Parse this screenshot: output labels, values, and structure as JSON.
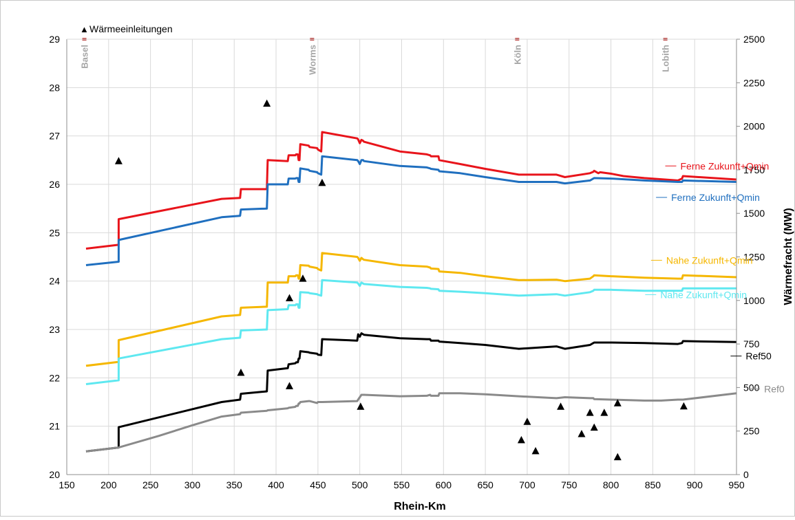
{
  "chart_data": {
    "type": "line",
    "xlabel": "Rhein-Km",
    "ylabel_right": "Wärmefracht  (MW)",
    "xlim": [
      150,
      950
    ],
    "ylim_left": [
      20,
      29
    ],
    "ylim_right": [
      0,
      2500
    ],
    "x_ticks": [
      "150",
      "200",
      "250",
      "300",
      "350",
      "400",
      "450",
      "500",
      "550",
      "600",
      "650",
      "700",
      "750",
      "800",
      "850",
      "900",
      "950"
    ],
    "y_ticks_left": [
      "20",
      "21",
      "22",
      "23",
      "24",
      "25",
      "26",
      "27",
      "28",
      "29"
    ],
    "y_ticks_right": [
      "0",
      "250",
      "500",
      "750",
      "1000",
      "1250",
      "1500",
      "1750",
      "2000",
      "2250",
      "2500"
    ],
    "grid": true,
    "legend": {
      "marker": "▲",
      "label": "Wärmeeinleitungen",
      "position": "top-left"
    },
    "locations": [
      {
        "name": "Basel",
        "km": 171
      },
      {
        "name": "Worms",
        "km": 443
      },
      {
        "name": "Köln",
        "km": 688
      },
      {
        "name": "Lobith",
        "km": 865
      }
    ],
    "series": [
      {
        "name": "Ferne Zukunft+Qmin",
        "color": "#e8141b",
        "x": [
          173,
          212,
          212,
          335,
          357,
          358,
          389,
          390,
          414,
          415,
          423,
          424,
          426,
          427,
          428,
          429,
          439,
          440,
          449,
          450,
          454,
          455,
          497,
          498,
          500,
          502,
          504,
          505,
          548,
          580,
          584,
          585,
          594,
          595,
          620,
          650,
          690,
          735,
          745,
          775,
          779,
          780,
          785,
          787,
          800,
          815,
          840,
          880,
          885,
          886,
          950
        ],
        "y": [
          24.67,
          24.75,
          25.28,
          25.7,
          25.72,
          25.9,
          25.9,
          26.5,
          26.48,
          26.6,
          26.6,
          26.62,
          26.62,
          26.5,
          26.5,
          26.83,
          26.8,
          26.77,
          26.75,
          26.72,
          26.68,
          27.08,
          26.95,
          26.93,
          26.85,
          26.92,
          26.9,
          26.88,
          26.68,
          26.62,
          26.6,
          26.58,
          26.58,
          26.5,
          26.42,
          26.32,
          26.2,
          26.2,
          26.15,
          26.23,
          26.26,
          26.28,
          26.23,
          26.25,
          26.22,
          26.17,
          26.13,
          26.08,
          26.12,
          26.17,
          26.1
        ]
      },
      {
        "name": "Ferne Zukunft+Qmin",
        "color": "#1f6fbf",
        "x": [
          173,
          212,
          212,
          335,
          357,
          358,
          389,
          390,
          414,
          415,
          423,
          424,
          426,
          427,
          428,
          429,
          439,
          440,
          449,
          450,
          454,
          455,
          497,
          498,
          500,
          502,
          504,
          505,
          548,
          580,
          584,
          585,
          594,
          595,
          620,
          650,
          690,
          735,
          745,
          775,
          779,
          780,
          800,
          840,
          880,
          885,
          886,
          950
        ],
        "y": [
          24.33,
          24.4,
          24.85,
          25.32,
          25.35,
          25.48,
          25.5,
          26.0,
          26.0,
          26.12,
          26.12,
          26.13,
          26.13,
          26.05,
          26.05,
          26.33,
          26.3,
          26.28,
          26.25,
          26.23,
          26.2,
          26.58,
          26.5,
          26.48,
          26.42,
          26.5,
          26.5,
          26.48,
          26.38,
          26.35,
          26.33,
          26.32,
          26.3,
          26.27,
          26.23,
          26.15,
          26.05,
          26.05,
          26.02,
          26.08,
          26.12,
          26.13,
          26.12,
          26.08,
          26.05,
          26.05,
          26.08,
          26.05
        ]
      },
      {
        "name": "Nahe Zukunft+Qmin",
        "color": "#f5b700",
        "x": [
          173,
          212,
          212,
          335,
          357,
          358,
          389,
          390,
          414,
          415,
          423,
          424,
          426,
          427,
          428,
          429,
          439,
          440,
          449,
          450,
          454,
          455,
          497,
          498,
          500,
          502,
          504,
          505,
          548,
          580,
          584,
          585,
          594,
          595,
          620,
          650,
          690,
          735,
          745,
          775,
          779,
          780,
          800,
          840,
          880,
          885,
          886,
          950
        ],
        "y": [
          22.25,
          22.33,
          22.78,
          23.27,
          23.3,
          23.45,
          23.47,
          23.97,
          23.97,
          24.1,
          24.1,
          24.12,
          24.12,
          24.05,
          24.05,
          24.33,
          24.32,
          24.3,
          24.27,
          24.25,
          24.22,
          24.58,
          24.5,
          24.48,
          24.42,
          24.48,
          24.45,
          24.44,
          24.33,
          24.3,
          24.28,
          24.26,
          24.25,
          24.2,
          24.17,
          24.1,
          24.02,
          24.03,
          24.0,
          24.05,
          24.1,
          24.12,
          24.1,
          24.07,
          24.05,
          24.05,
          24.12,
          24.08
        ]
      },
      {
        "name": "Nahe Zukunft+Qmin",
        "color": "#5ee8f0",
        "x": [
          173,
          212,
          212,
          335,
          357,
          358,
          389,
          390,
          414,
          415,
          423,
          424,
          426,
          427,
          428,
          429,
          439,
          440,
          449,
          450,
          454,
          455,
          497,
          498,
          500,
          502,
          504,
          505,
          548,
          580,
          584,
          585,
          594,
          595,
          620,
          650,
          690,
          735,
          745,
          775,
          779,
          780,
          800,
          840,
          880,
          885,
          886,
          950
        ],
        "y": [
          21.87,
          21.95,
          22.4,
          22.8,
          22.83,
          22.98,
          23.0,
          23.4,
          23.42,
          23.5,
          23.5,
          23.52,
          23.52,
          23.45,
          23.45,
          23.77,
          23.76,
          23.75,
          23.73,
          23.72,
          23.7,
          24.02,
          23.97,
          23.95,
          23.9,
          23.97,
          23.95,
          23.94,
          23.88,
          23.86,
          23.85,
          23.84,
          23.83,
          23.8,
          23.78,
          23.75,
          23.7,
          23.73,
          23.7,
          23.77,
          23.8,
          23.82,
          23.82,
          23.8,
          23.8,
          23.8,
          23.85,
          23.85
        ]
      },
      {
        "name": "Ref50",
        "color": "#000000",
        "x": [
          173,
          212,
          212,
          335,
          357,
          358,
          389,
          390,
          414,
          415,
          423,
          424,
          426,
          427,
          428,
          429,
          439,
          440,
          449,
          450,
          454,
          455,
          497,
          498,
          500,
          502,
          504,
          505,
          548,
          580,
          584,
          585,
          594,
          595,
          620,
          650,
          690,
          735,
          745,
          775,
          779,
          780,
          800,
          840,
          880,
          885,
          886,
          950
        ],
        "y": [
          20.48,
          20.56,
          20.98,
          21.5,
          21.55,
          21.67,
          21.72,
          22.15,
          22.2,
          22.28,
          22.3,
          22.32,
          22.32,
          22.4,
          22.4,
          22.55,
          22.53,
          22.52,
          22.5,
          22.48,
          22.47,
          22.8,
          22.77,
          22.9,
          22.85,
          22.92,
          22.9,
          22.89,
          22.82,
          22.8,
          22.8,
          22.77,
          22.77,
          22.75,
          22.72,
          22.68,
          22.6,
          22.65,
          22.6,
          22.68,
          22.72,
          22.73,
          22.73,
          22.72,
          22.7,
          22.72,
          22.76,
          22.74
        ]
      },
      {
        "name": "Ref0",
        "color": "#8a8a8a",
        "x": [
          173,
          212,
          212,
          260,
          300,
          335,
          357,
          358,
          389,
          390,
          414,
          415,
          423,
          424,
          426,
          427,
          428,
          429,
          439,
          440,
          449,
          450,
          454,
          455,
          497,
          498,
          500,
          502,
          504,
          505,
          548,
          580,
          584,
          585,
          594,
          595,
          620,
          650,
          690,
          735,
          745,
          775,
          779,
          780,
          800,
          840,
          860,
          880,
          885,
          886,
          950
        ],
        "y": [
          20.48,
          20.56,
          20.56,
          20.8,
          21.02,
          21.2,
          21.25,
          21.28,
          21.32,
          21.33,
          21.37,
          21.38,
          21.4,
          21.42,
          21.42,
          21.47,
          21.47,
          21.5,
          21.52,
          21.52,
          21.48,
          21.5,
          21.5,
          21.5,
          21.52,
          21.55,
          21.6,
          21.65,
          21.65,
          21.65,
          21.62,
          21.63,
          21.65,
          21.63,
          21.63,
          21.68,
          21.68,
          21.66,
          21.62,
          21.58,
          21.6,
          21.58,
          21.58,
          21.56,
          21.55,
          21.53,
          21.53,
          21.55,
          21.55,
          21.55,
          21.68
        ]
      }
    ],
    "series_labels": [
      {
        "text": "Ferne Zukunft+Qmin",
        "color": "#e8141b",
        "x": 883,
        "y": 26.38
      },
      {
        "text": "Ferne Zukunft+Qmin",
        "color": "#1f6fbf",
        "x": 872,
        "y": 25.73
      },
      {
        "text": "Nahe Zukunft+Qmin",
        "color": "#f5b700",
        "x": 866,
        "y": 24.43
      },
      {
        "text": "Nahe Zukunft+Qmin",
        "color": "#5ee8f0",
        "x": 859,
        "y": 23.72
      },
      {
        "text": "Ref50",
        "color": "#000000",
        "x": 961,
        "y": 22.45
      },
      {
        "text": "Ref0",
        "color": "#8a8a8a",
        "x": 983,
        "y": 21.77
      }
    ],
    "heat_inputs": {
      "name": "Wärmeeinleitungen",
      "x": [
        212,
        389,
        358,
        416,
        416,
        432,
        455,
        501,
        693,
        700,
        710,
        740,
        765,
        775,
        780,
        792,
        808,
        808,
        887
      ],
      "mw": [
        1800,
        2130,
        585,
        1013,
        508,
        1125,
        1675,
        390,
        198,
        303,
        135,
        390,
        233,
        355,
        270,
        355,
        100,
        410,
        392
      ]
    }
  }
}
